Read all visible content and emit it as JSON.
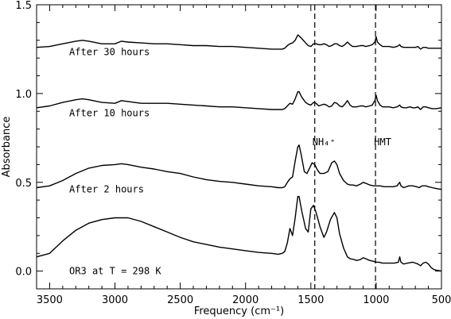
{
  "chart_data": {
    "type": "line",
    "title": "",
    "xlabel": "Frequency (cm⁻¹)",
    "ylabel": "Absorbance",
    "xlim": [
      3600,
      500
    ],
    "ylim": [
      -0.1,
      1.5
    ],
    "x_reversed": true,
    "xticks": [
      3500,
      3000,
      2500,
      2000,
      1500,
      1000,
      500
    ],
    "xtick_labels": [
      "3500",
      "3000",
      "2500",
      "2000",
      "1500",
      "1000",
      "500"
    ],
    "yticks": [
      0.0,
      0.5,
      1.0,
      1.5
    ],
    "ytick_labels": [
      "0.0",
      "0.5",
      "1.0",
      "1.5"
    ],
    "grid": false,
    "series": [
      {
        "label_text": "OR3 at T = 298 K",
        "points": [
          [
            3600,
            0.08
          ],
          [
            3500,
            0.1
          ],
          [
            3400,
            0.17
          ],
          [
            3300,
            0.23
          ],
          [
            3200,
            0.27
          ],
          [
            3100,
            0.29
          ],
          [
            3000,
            0.3
          ],
          [
            2900,
            0.3
          ],
          [
            2800,
            0.28
          ],
          [
            2700,
            0.25
          ],
          [
            2600,
            0.22
          ],
          [
            2500,
            0.19
          ],
          [
            2400,
            0.165
          ],
          [
            2300,
            0.15
          ],
          [
            2200,
            0.135
          ],
          [
            2100,
            0.125
          ],
          [
            2000,
            0.115
          ],
          [
            1900,
            0.105
          ],
          [
            1800,
            0.1
          ],
          [
            1750,
            0.095
          ],
          [
            1720,
            0.1
          ],
          [
            1700,
            0.11
          ],
          [
            1680,
            0.16
          ],
          [
            1660,
            0.24
          ],
          [
            1640,
            0.2
          ],
          [
            1620,
            0.3
          ],
          [
            1600,
            0.42
          ],
          [
            1590,
            0.42
          ],
          [
            1570,
            0.34
          ],
          [
            1540,
            0.24
          ],
          [
            1520,
            0.22
          ],
          [
            1500,
            0.35
          ],
          [
            1480,
            0.37
          ],
          [
            1460,
            0.33
          ],
          [
            1430,
            0.25
          ],
          [
            1400,
            0.19
          ],
          [
            1380,
            0.22
          ],
          [
            1350,
            0.29
          ],
          [
            1320,
            0.33
          ],
          [
            1300,
            0.3
          ],
          [
            1280,
            0.21
          ],
          [
            1250,
            0.13
          ],
          [
            1220,
            0.08
          ],
          [
            1200,
            0.07
          ],
          [
            1170,
            0.065
          ],
          [
            1150,
            0.06
          ],
          [
            1120,
            0.065
          ],
          [
            1100,
            0.075
          ],
          [
            1080,
            0.07
          ],
          [
            1050,
            0.06
          ],
          [
            1020,
            0.055
          ],
          [
            1000,
            0.05
          ],
          [
            980,
            0.05
          ],
          [
            950,
            0.045
          ],
          [
            900,
            0.045
          ],
          [
            860,
            0.045
          ],
          [
            830,
            0.05
          ],
          [
            820,
            0.08
          ],
          [
            810,
            0.05
          ],
          [
            790,
            0.04
          ],
          [
            760,
            0.045
          ],
          [
            720,
            0.05
          ],
          [
            680,
            0.04
          ],
          [
            660,
            0.03
          ],
          [
            640,
            0.045
          ],
          [
            620,
            0.05
          ],
          [
            600,
            0.04
          ],
          [
            580,
            0.02
          ],
          [
            560,
            0.01
          ],
          [
            540,
            0.005
          ],
          [
            500,
            0.0
          ]
        ]
      },
      {
        "label_text": "After 2 hours",
        "points": [
          [
            3600,
            0.47
          ],
          [
            3500,
            0.48
          ],
          [
            3400,
            0.51
          ],
          [
            3300,
            0.55
          ],
          [
            3200,
            0.58
          ],
          [
            3100,
            0.595
          ],
          [
            3000,
            0.6
          ],
          [
            2950,
            0.605
          ],
          [
            2900,
            0.6
          ],
          [
            2800,
            0.585
          ],
          [
            2700,
            0.575
          ],
          [
            2600,
            0.56
          ],
          [
            2500,
            0.55
          ],
          [
            2400,
            0.53
          ],
          [
            2300,
            0.515
          ],
          [
            2200,
            0.505
          ],
          [
            2100,
            0.5
          ],
          [
            2000,
            0.49
          ],
          [
            1900,
            0.48
          ],
          [
            1800,
            0.475
          ],
          [
            1750,
            0.47
          ],
          [
            1720,
            0.47
          ],
          [
            1700,
            0.475
          ],
          [
            1680,
            0.5
          ],
          [
            1660,
            0.52
          ],
          [
            1640,
            0.53
          ],
          [
            1620,
            0.62
          ],
          [
            1600,
            0.7
          ],
          [
            1590,
            0.71
          ],
          [
            1575,
            0.66
          ],
          [
            1550,
            0.56
          ],
          [
            1530,
            0.55
          ],
          [
            1510,
            0.58
          ],
          [
            1490,
            0.61
          ],
          [
            1470,
            0.6
          ],
          [
            1450,
            0.57
          ],
          [
            1430,
            0.55
          ],
          [
            1400,
            0.55
          ],
          [
            1370,
            0.56
          ],
          [
            1340,
            0.61
          ],
          [
            1320,
            0.62
          ],
          [
            1300,
            0.6
          ],
          [
            1280,
            0.55
          ],
          [
            1250,
            0.51
          ],
          [
            1220,
            0.49
          ],
          [
            1200,
            0.485
          ],
          [
            1180,
            0.485
          ],
          [
            1150,
            0.48
          ],
          [
            1120,
            0.49
          ],
          [
            1100,
            0.5
          ],
          [
            1080,
            0.495
          ],
          [
            1050,
            0.485
          ],
          [
            1020,
            0.48
          ],
          [
            1000,
            0.48
          ],
          [
            970,
            0.48
          ],
          [
            940,
            0.475
          ],
          [
            900,
            0.475
          ],
          [
            870,
            0.475
          ],
          [
            840,
            0.48
          ],
          [
            820,
            0.5
          ],
          [
            810,
            0.48
          ],
          [
            790,
            0.47
          ],
          [
            750,
            0.48
          ],
          [
            720,
            0.48
          ],
          [
            690,
            0.475
          ],
          [
            670,
            0.47
          ],
          [
            650,
            0.48
          ],
          [
            620,
            0.48
          ],
          [
            600,
            0.475
          ],
          [
            570,
            0.47
          ],
          [
            540,
            0.465
          ],
          [
            500,
            0.46
          ]
        ]
      },
      {
        "label_text": "After 10 hours",
        "points": [
          [
            3600,
            0.92
          ],
          [
            3500,
            0.93
          ],
          [
            3400,
            0.95
          ],
          [
            3300,
            0.965
          ],
          [
            3250,
            0.97
          ],
          [
            3200,
            0.965
          ],
          [
            3100,
            0.95
          ],
          [
            3000,
            0.945
          ],
          [
            2950,
            0.96
          ],
          [
            2900,
            0.955
          ],
          [
            2800,
            0.945
          ],
          [
            2700,
            0.945
          ],
          [
            2600,
            0.945
          ],
          [
            2500,
            0.94
          ],
          [
            2400,
            0.935
          ],
          [
            2300,
            0.93
          ],
          [
            2200,
            0.925
          ],
          [
            2100,
            0.925
          ],
          [
            2000,
            0.92
          ],
          [
            1900,
            0.915
          ],
          [
            1800,
            0.91
          ],
          [
            1750,
            0.91
          ],
          [
            1720,
            0.91
          ],
          [
            1700,
            0.915
          ],
          [
            1680,
            0.93
          ],
          [
            1660,
            0.945
          ],
          [
            1640,
            0.94
          ],
          [
            1620,
            0.97
          ],
          [
            1600,
            1.01
          ],
          [
            1590,
            1.01
          ],
          [
            1570,
            0.98
          ],
          [
            1540,
            0.95
          ],
          [
            1520,
            0.94
          ],
          [
            1500,
            0.935
          ],
          [
            1480,
            0.95
          ],
          [
            1460,
            0.945
          ],
          [
            1440,
            0.93
          ],
          [
            1420,
            0.935
          ],
          [
            1400,
            0.94
          ],
          [
            1380,
            0.935
          ],
          [
            1360,
            0.925
          ],
          [
            1340,
            0.93
          ],
          [
            1320,
            0.95
          ],
          [
            1300,
            0.945
          ],
          [
            1280,
            0.93
          ],
          [
            1260,
            0.925
          ],
          [
            1240,
            0.94
          ],
          [
            1220,
            0.96
          ],
          [
            1200,
            0.935
          ],
          [
            1180,
            0.925
          ],
          [
            1150,
            0.925
          ],
          [
            1120,
            0.93
          ],
          [
            1100,
            0.93
          ],
          [
            1080,
            0.925
          ],
          [
            1050,
            0.93
          ],
          [
            1030,
            0.935
          ],
          [
            1010,
            0.96
          ],
          [
            1000,
            0.99
          ],
          [
            990,
            0.96
          ],
          [
            970,
            0.935
          ],
          [
            950,
            0.925
          ],
          [
            920,
            0.925
          ],
          [
            900,
            0.925
          ],
          [
            870,
            0.92
          ],
          [
            840,
            0.925
          ],
          [
            820,
            0.935
          ],
          [
            810,
            0.925
          ],
          [
            790,
            0.92
          ],
          [
            770,
            0.92
          ],
          [
            740,
            0.925
          ],
          [
            720,
            0.92
          ],
          [
            700,
            0.92
          ],
          [
            680,
            0.925
          ],
          [
            660,
            0.91
          ],
          [
            640,
            0.925
          ],
          [
            620,
            0.925
          ],
          [
            600,
            0.92
          ],
          [
            570,
            0.915
          ],
          [
            540,
            0.915
          ],
          [
            500,
            0.92
          ]
        ]
      },
      {
        "label_text": "After 30 hours",
        "points": [
          [
            3600,
            1.26
          ],
          [
            3500,
            1.265
          ],
          [
            3400,
            1.28
          ],
          [
            3300,
            1.295
          ],
          [
            3250,
            1.3
          ],
          [
            3200,
            1.295
          ],
          [
            3100,
            1.28
          ],
          [
            3000,
            1.28
          ],
          [
            2950,
            1.295
          ],
          [
            2900,
            1.29
          ],
          [
            2800,
            1.285
          ],
          [
            2700,
            1.28
          ],
          [
            2600,
            1.28
          ],
          [
            2500,
            1.275
          ],
          [
            2400,
            1.27
          ],
          [
            2300,
            1.27
          ],
          [
            2200,
            1.265
          ],
          [
            2100,
            1.265
          ],
          [
            2000,
            1.26
          ],
          [
            1900,
            1.255
          ],
          [
            1800,
            1.25
          ],
          [
            1750,
            1.25
          ],
          [
            1720,
            1.25
          ],
          [
            1700,
            1.255
          ],
          [
            1680,
            1.27
          ],
          [
            1660,
            1.28
          ],
          [
            1640,
            1.285
          ],
          [
            1620,
            1.3
          ],
          [
            1600,
            1.33
          ],
          [
            1590,
            1.325
          ],
          [
            1570,
            1.31
          ],
          [
            1540,
            1.285
          ],
          [
            1520,
            1.27
          ],
          [
            1500,
            1.265
          ],
          [
            1480,
            1.28
          ],
          [
            1460,
            1.28
          ],
          [
            1440,
            1.275
          ],
          [
            1420,
            1.275
          ],
          [
            1400,
            1.28
          ],
          [
            1380,
            1.275
          ],
          [
            1360,
            1.265
          ],
          [
            1340,
            1.27
          ],
          [
            1320,
            1.28
          ],
          [
            1300,
            1.28
          ],
          [
            1280,
            1.27
          ],
          [
            1260,
            1.265
          ],
          [
            1240,
            1.275
          ],
          [
            1220,
            1.29
          ],
          [
            1200,
            1.275
          ],
          [
            1180,
            1.265
          ],
          [
            1150,
            1.265
          ],
          [
            1120,
            1.27
          ],
          [
            1100,
            1.27
          ],
          [
            1080,
            1.265
          ],
          [
            1050,
            1.27
          ],
          [
            1030,
            1.275
          ],
          [
            1010,
            1.29
          ],
          [
            1000,
            1.32
          ],
          [
            990,
            1.29
          ],
          [
            970,
            1.275
          ],
          [
            950,
            1.265
          ],
          [
            920,
            1.265
          ],
          [
            900,
            1.265
          ],
          [
            870,
            1.26
          ],
          [
            840,
            1.265
          ],
          [
            820,
            1.275
          ],
          [
            810,
            1.265
          ],
          [
            790,
            1.26
          ],
          [
            770,
            1.26
          ],
          [
            740,
            1.26
          ],
          [
            720,
            1.26
          ],
          [
            700,
            1.26
          ],
          [
            680,
            1.265
          ],
          [
            660,
            1.25
          ],
          [
            640,
            1.26
          ],
          [
            620,
            1.26
          ],
          [
            600,
            1.255
          ],
          [
            570,
            1.255
          ],
          [
            540,
            1.255
          ],
          [
            500,
            1.255
          ]
        ]
      }
    ],
    "annotations": [
      {
        "text": "NH₄⁺",
        "x": 1400,
        "y": 0.71
      },
      {
        "text": "HMT",
        "x": 950,
        "y": 0.71
      }
    ],
    "vlines": [
      1470,
      1005
    ]
  }
}
